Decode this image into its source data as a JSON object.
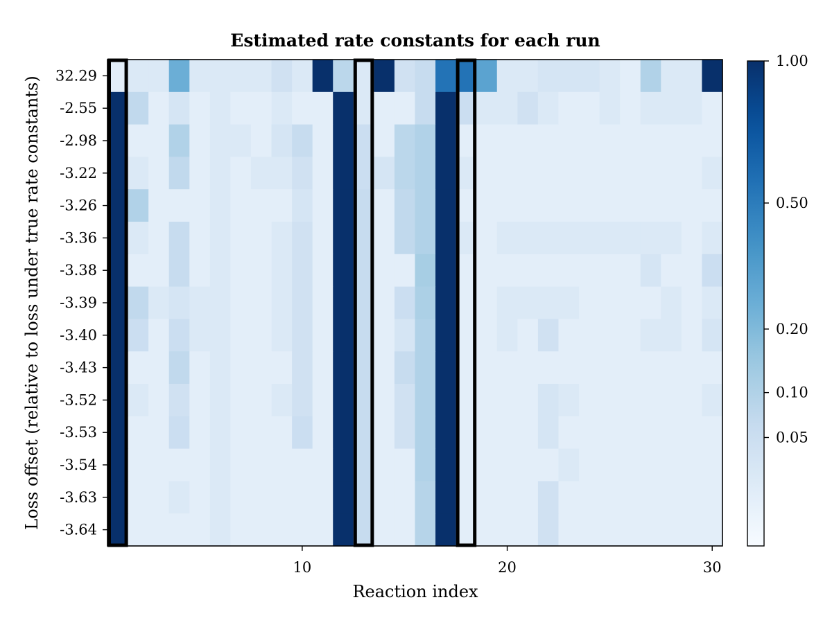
{
  "chart_data": {
    "type": "heatmap",
    "title": "Estimated rate constants for each run",
    "xlabel": "Reaction index",
    "ylabel": "Loss offset (relative to loss under true rate constants)",
    "x_range": [
      1,
      30
    ],
    "x_ticks": [
      10,
      20,
      30
    ],
    "y_categories": [
      "32.29",
      "-2.55",
      "-2.98",
      "-3.22",
      "-3.26",
      "-3.36",
      "-3.38",
      "-3.39",
      "-3.40",
      "-3.43",
      "-3.52",
      "-3.53",
      "-3.54",
      "-3.63",
      "-3.64"
    ],
    "highlighted_columns": [
      1,
      13,
      18
    ],
    "colorbar": {
      "colormap": "Blues",
      "scale": "sqrt",
      "range": [
        0,
        1
      ],
      "ticks": [
        1.0,
        0.5,
        0.2,
        0.1,
        0.05
      ],
      "tick_labels": [
        "1.00",
        "0.50",
        "0.20",
        "0.10",
        "0.05"
      ]
    },
    "values": [
      [
        0.01,
        0.02,
        0.02,
        0.25,
        0.02,
        0.02,
        0.02,
        0.02,
        0.04,
        0.02,
        1.0,
        0.08,
        0.02,
        1.0,
        0.04,
        0.06,
        0.55,
        0.55,
        0.3,
        0.02,
        0.02,
        0.03,
        0.03,
        0.03,
        0.02,
        0.01,
        0.1,
        0.02,
        0.02,
        1.0
      ],
      [
        1.0,
        0.07,
        0.01,
        0.03,
        0.01,
        0.02,
        0.01,
        0.01,
        0.02,
        0.01,
        0.01,
        1.0,
        0.02,
        0.01,
        0.01,
        0.06,
        1.0,
        0.05,
        0.02,
        0.02,
        0.04,
        0.02,
        0.01,
        0.01,
        0.02,
        0.01,
        0.02,
        0.02,
        0.02,
        0.01
      ],
      [
        1.0,
        0.01,
        0.01,
        0.1,
        0.01,
        0.02,
        0.02,
        0.01,
        0.03,
        0.06,
        0.01,
        1.0,
        0.05,
        0.01,
        0.08,
        0.1,
        1.0,
        0.01,
        0.01,
        0.01,
        0.01,
        0.01,
        0.01,
        0.01,
        0.01,
        0.01,
        0.01,
        0.01,
        0.01,
        0.01
      ],
      [
        1.0,
        0.02,
        0.01,
        0.07,
        0.01,
        0.02,
        0.01,
        0.02,
        0.02,
        0.04,
        0.01,
        1.0,
        0.05,
        0.03,
        0.08,
        0.1,
        1.0,
        0.02,
        0.01,
        0.01,
        0.01,
        0.01,
        0.01,
        0.01,
        0.01,
        0.01,
        0.01,
        0.01,
        0.01,
        0.02
      ],
      [
        1.0,
        0.1,
        0.01,
        0.01,
        0.01,
        0.02,
        0.01,
        0.01,
        0.01,
        0.03,
        0.01,
        1.0,
        0.06,
        0.01,
        0.07,
        0.1,
        1.0,
        0.01,
        0.01,
        0.01,
        0.01,
        0.01,
        0.01,
        0.01,
        0.01,
        0.01,
        0.01,
        0.01,
        0.01,
        0.01
      ],
      [
        1.0,
        0.02,
        0.01,
        0.06,
        0.01,
        0.02,
        0.01,
        0.01,
        0.02,
        0.04,
        0.01,
        1.0,
        0.06,
        0.01,
        0.07,
        0.1,
        1.0,
        0.02,
        0.01,
        0.02,
        0.02,
        0.02,
        0.02,
        0.02,
        0.02,
        0.02,
        0.02,
        0.02,
        0.01,
        0.02
      ],
      [
        1.0,
        0.01,
        0.01,
        0.06,
        0.01,
        0.02,
        0.01,
        0.01,
        0.02,
        0.04,
        0.01,
        1.0,
        0.06,
        0.01,
        0.01,
        0.12,
        1.0,
        0.01,
        0.01,
        0.01,
        0.01,
        0.01,
        0.01,
        0.01,
        0.01,
        0.01,
        0.03,
        0.01,
        0.01,
        0.05
      ],
      [
        1.0,
        0.07,
        0.02,
        0.03,
        0.02,
        0.02,
        0.01,
        0.01,
        0.02,
        0.04,
        0.01,
        1.0,
        0.06,
        0.01,
        0.05,
        0.11,
        1.0,
        0.01,
        0.01,
        0.02,
        0.02,
        0.02,
        0.02,
        0.01,
        0.01,
        0.01,
        0.01,
        0.02,
        0.01,
        0.02
      ],
      [
        1.0,
        0.05,
        0.01,
        0.05,
        0.02,
        0.02,
        0.01,
        0.01,
        0.02,
        0.04,
        0.01,
        1.0,
        0.06,
        0.01,
        0.03,
        0.1,
        1.0,
        0.01,
        0.01,
        0.02,
        0.01,
        0.04,
        0.01,
        0.01,
        0.01,
        0.01,
        0.02,
        0.02,
        0.01,
        0.03
      ],
      [
        1.0,
        0.01,
        0.01,
        0.07,
        0.01,
        0.02,
        0.01,
        0.01,
        0.01,
        0.04,
        0.01,
        1.0,
        0.06,
        0.01,
        0.06,
        0.1,
        1.0,
        0.01,
        0.01,
        0.01,
        0.01,
        0.01,
        0.01,
        0.01,
        0.01,
        0.01,
        0.01,
        0.01,
        0.01,
        0.01
      ],
      [
        1.0,
        0.02,
        0.01,
        0.04,
        0.01,
        0.02,
        0.01,
        0.01,
        0.02,
        0.04,
        0.01,
        1.0,
        0.06,
        0.01,
        0.04,
        0.1,
        1.0,
        0.01,
        0.01,
        0.01,
        0.01,
        0.03,
        0.02,
        0.01,
        0.01,
        0.01,
        0.01,
        0.01,
        0.01,
        0.02
      ],
      [
        1.0,
        0.01,
        0.01,
        0.05,
        0.01,
        0.02,
        0.01,
        0.01,
        0.01,
        0.05,
        0.01,
        1.0,
        0.06,
        0.01,
        0.04,
        0.1,
        1.0,
        0.01,
        0.01,
        0.01,
        0.01,
        0.03,
        0.01,
        0.01,
        0.01,
        0.01,
        0.01,
        0.01,
        0.01,
        0.01
      ],
      [
        1.0,
        0.01,
        0.01,
        0.01,
        0.01,
        0.02,
        0.01,
        0.01,
        0.01,
        0.01,
        0.01,
        1.0,
        0.06,
        0.01,
        0.01,
        0.1,
        1.0,
        0.01,
        0.01,
        0.01,
        0.01,
        0.01,
        0.02,
        0.01,
        0.01,
        0.01,
        0.01,
        0.01,
        0.01,
        0.01
      ],
      [
        1.0,
        0.01,
        0.01,
        0.02,
        0.01,
        0.02,
        0.01,
        0.01,
        0.01,
        0.01,
        0.01,
        1.0,
        0.06,
        0.01,
        0.01,
        0.09,
        1.0,
        0.01,
        0.01,
        0.01,
        0.01,
        0.04,
        0.01,
        0.01,
        0.01,
        0.01,
        0.01,
        0.01,
        0.01,
        0.01
      ],
      [
        1.0,
        0.01,
        0.01,
        0.01,
        0.01,
        0.02,
        0.01,
        0.01,
        0.01,
        0.01,
        0.01,
        1.0,
        0.06,
        0.01,
        0.01,
        0.09,
        1.0,
        0.01,
        0.01,
        0.01,
        0.01,
        0.04,
        0.01,
        0.01,
        0.01,
        0.01,
        0.01,
        0.01,
        0.01,
        0.01
      ]
    ]
  }
}
